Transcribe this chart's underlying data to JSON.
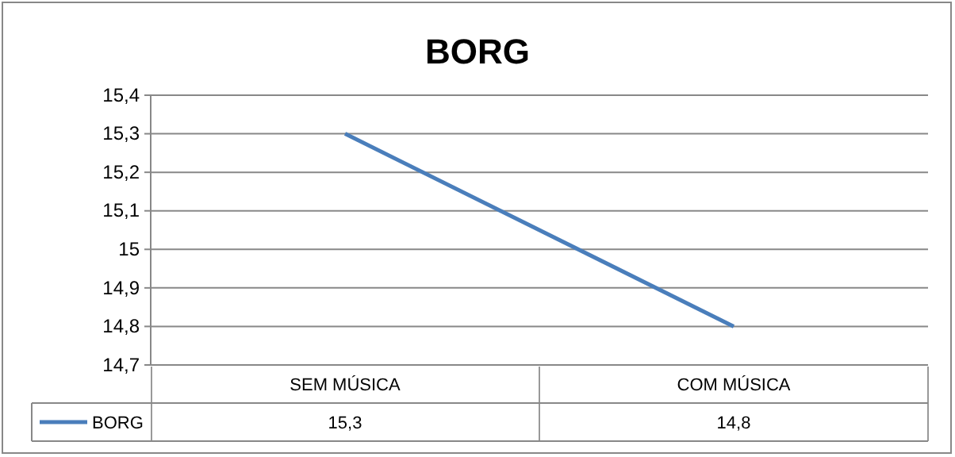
{
  "chart_data": {
    "type": "line",
    "title": "BORG",
    "categories": [
      "SEM MÚSICA",
      "COM MÚSICA"
    ],
    "series": [
      {
        "name": "BORG",
        "color": "#4a7ebb",
        "values": [
          15.3,
          14.8
        ]
      }
    ],
    "ylim": [
      14.7,
      15.4
    ],
    "yticks": [
      {
        "value": 14.7,
        "label": "14,7"
      },
      {
        "value": 14.8,
        "label": "14,8"
      },
      {
        "value": 14.9,
        "label": "14,9"
      },
      15,
      {
        "value": 15.1,
        "label": "15,1"
      },
      {
        "value": 15.2,
        "label": "15,2"
      },
      {
        "value": 15.3,
        "label": "15,3"
      },
      {
        "value": 15.4,
        "label": "15,4"
      }
    ],
    "value_labels": [
      "15,3",
      "14,8"
    ],
    "grid": "y",
    "legend": "bottom",
    "marker": "none",
    "line_style": "solid"
  }
}
